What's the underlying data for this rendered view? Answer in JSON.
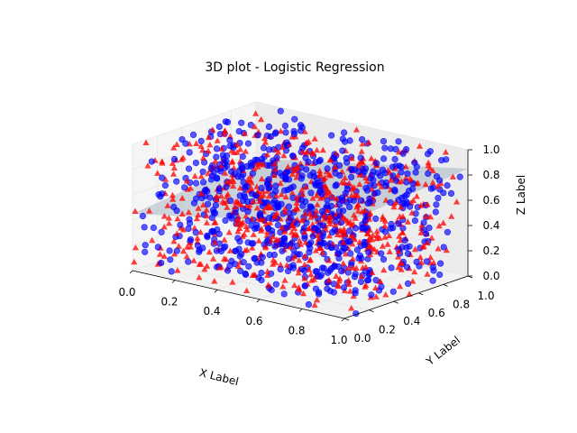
{
  "chart_data": {
    "type": "scatter",
    "title": "3D plot - Logistic Regression",
    "xlabel": "X Label",
    "ylabel": "Y Label",
    "zlabel": "Z Label",
    "xlim": [
      0,
      1
    ],
    "ylim": [
      0,
      1
    ],
    "zlim": [
      0,
      1
    ],
    "xticks": [
      "0.0",
      "0.2",
      "0.4",
      "0.6",
      "0.8",
      "1.0"
    ],
    "yticks": [
      "0.0",
      "0.2",
      "0.4",
      "0.6",
      "0.8",
      "1.0"
    ],
    "zticks": [
      "0.0",
      "0.2",
      "0.4",
      "0.6",
      "0.8",
      "1.0"
    ],
    "grid": true,
    "colors": {
      "class_0": "#ff0000",
      "class_1": "#0000ff",
      "plane": "#a7b6c4",
      "pane": "#f2f2f2",
      "grid": "#e6e6e6"
    },
    "markers": {
      "class_0": "triangle",
      "class_1": "circle"
    },
    "approx_points_per_class": 700,
    "decision_plane": {
      "z_at_x0_y0": 0.45,
      "z_at_x1_y0": 0.75,
      "z_at_x0_y1": 0.55
    }
  }
}
